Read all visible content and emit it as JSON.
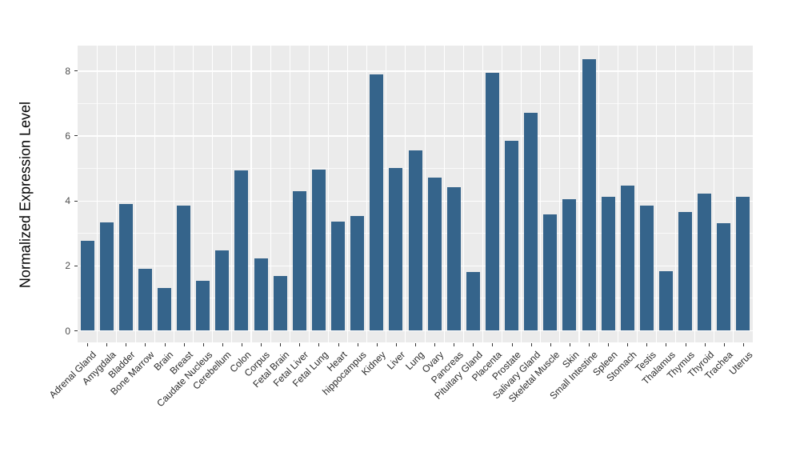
{
  "figure": {
    "type_label": "bar chart",
    "background_color": "#ffffff"
  },
  "chart_data": {
    "type": "bar",
    "title": "",
    "xlabel": "",
    "ylabel": "Normalized Expression Level",
    "categories": [
      "Adrenal Gland",
      "Amygdala",
      "Bladder",
      "Bone Marrow",
      "Brain",
      "Breast",
      "Caudate Nucleus",
      "Cerebellum",
      "Colon",
      "Corpus",
      "Fetal Brain",
      "Fetal Liver",
      "Fetal Lung",
      "Heart",
      "hippocampus",
      "Kidney",
      "Liver",
      "Lung",
      "Ovary",
      "Pancreas",
      "Pituitary Gland",
      "Placenta",
      "Prostate",
      "Salivary Gland",
      "Skeletal Muscle",
      "Skin",
      "Small Intestine",
      "Spleen",
      "Stomach",
      "Testis",
      "Thalamus",
      "Thymus",
      "Thyroid",
      "Trachea",
      "Uterus"
    ],
    "values": [
      2.76,
      3.33,
      3.88,
      1.89,
      1.31,
      3.85,
      1.53,
      2.46,
      4.93,
      2.21,
      1.68,
      4.29,
      4.96,
      3.34,
      3.52,
      7.87,
      5.0,
      5.55,
      4.71,
      4.4,
      1.8,
      7.92,
      5.84,
      6.71,
      3.56,
      4.04,
      8.35,
      4.12,
      4.46,
      3.85,
      1.82,
      3.64,
      4.2,
      3.3,
      4.12
    ],
    "ylim": [
      0,
      8.75
    ],
    "yticks": [
      0,
      2,
      4,
      6,
      8
    ],
    "yticks_minor": [
      1,
      3,
      5,
      7
    ],
    "grid": true,
    "legend_position": "none",
    "bar_color": "#35648B",
    "panel_background": "#EBEBEB",
    "grid_color": "#FFFFFF",
    "tick_color": "#333333",
    "x_label_rotation_deg": 45
  }
}
